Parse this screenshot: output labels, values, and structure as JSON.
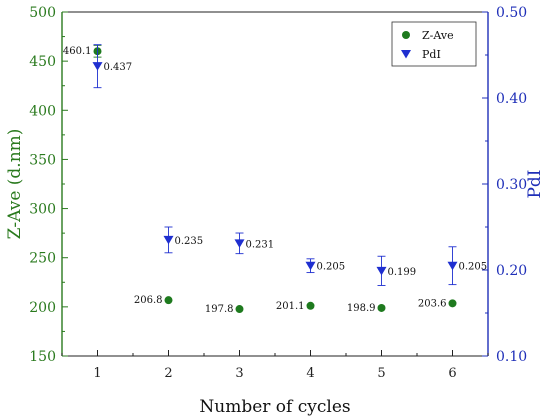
{
  "chart_data": {
    "type": "scatter",
    "x": [
      1,
      2,
      3,
      4,
      5,
      6
    ],
    "xlabel": "Number of cycles",
    "xlim": [
      0.5,
      6.5
    ],
    "x_ticks": [
      "1",
      "2",
      "3",
      "4",
      "5",
      "6"
    ],
    "y_left": {
      "label": "Z-Ave (d.nm)",
      "lim": [
        150,
        500
      ],
      "ticks": [
        "150",
        "200",
        "250",
        "300",
        "350",
        "400",
        "450",
        "500"
      ],
      "color": "#2a7a1e"
    },
    "y_right": {
      "label": "PdI",
      "lim": [
        0.1,
        0.5
      ],
      "ticks": [
        "0.10",
        "0.20",
        "0.30",
        "0.40",
        "0.50"
      ],
      "color": "#1f2fb8"
    },
    "series": [
      {
        "name": "Z-Ave",
        "axis": "left",
        "marker": "circle",
        "color": "#1e7a1e",
        "values": [
          460.1,
          206.8,
          197.8,
          201.1,
          198.9,
          203.6
        ],
        "labels": [
          "460.1",
          "206.8",
          "197.8",
          "201.1",
          "198.9",
          "203.6"
        ],
        "error": [
          6,
          0,
          0,
          0,
          0,
          0
        ]
      },
      {
        "name": "PdI",
        "axis": "right",
        "marker": "triangle-down",
        "color": "#1f2fd0",
        "values": [
          0.437,
          0.235,
          0.231,
          0.205,
          0.199,
          0.205
        ],
        "labels": [
          "0.437",
          "0.235",
          "0.231",
          "0.205",
          "0.199",
          "0.205"
        ],
        "error": [
          0.025,
          0.015,
          0.012,
          0.008,
          0.017,
          0.022
        ]
      }
    ],
    "legend_position": "top-right",
    "grid": false
  }
}
